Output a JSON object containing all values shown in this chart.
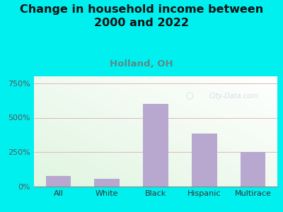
{
  "title": "Change in household income between\n2000 and 2022",
  "subtitle": "Holland, OH",
  "categories": [
    "All",
    "White",
    "Black",
    "Hispanic",
    "Multirace"
  ],
  "values": [
    75,
    58,
    600,
    385,
    250
  ],
  "bar_color": "#b8a8d0",
  "title_fontsize": 11.5,
  "subtitle_fontsize": 9.5,
  "subtitle_color": "#5a8a8a",
  "title_color": "#111111",
  "yticks": [
    0,
    250,
    500,
    750
  ],
  "ytick_labels": [
    "0%",
    "250%",
    "500%",
    "750%"
  ],
  "ylim": [
    0,
    800
  ],
  "bg_outer_color": "#00f0f0",
  "bg_inner_color": "#e8f5e0",
  "grid_color": "#e0b8b8",
  "watermark": "City-Data.com",
  "watermark_color": "#b8c8d0",
  "watermark_alpha": 0.55
}
